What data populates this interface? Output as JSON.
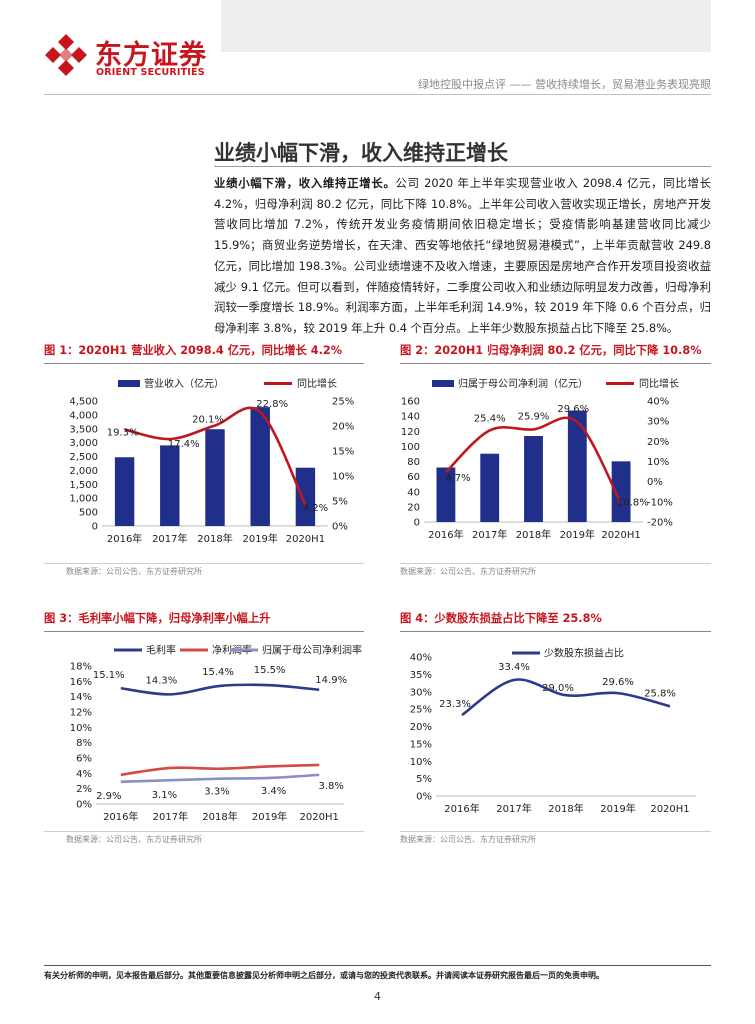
{
  "header": {
    "logo_cn": "东方证券",
    "logo_en": "ORIENT SECURITIES",
    "subtitle": "绿地控股中报点评 —— 营收持续增长，贸易港业务表现亮眼"
  },
  "section": {
    "title": "业绩小幅下滑，收入维持正增长",
    "lead": "业绩小幅下滑，收入维持正增长。",
    "body": "公司 2020 年上半年实现营业收入 2098.4 亿元，同比增长 4.2%，归母净利润 80.2 亿元，同比下降 10.8%。上半年公司收入营收实现正增长，房地产开发营收同比增加 7.2%，传统开发业务疫情期间依旧稳定增长；受疫情影响基建营收同比减少 15.9%；商贸业务逆势增长，在天津、西安等地依托“绿地贸易港模式”，上半年贡献营收 249.8 亿元，同比增加 198.3%。公司业绩增速不及收入增速，主要原因是房地产合作开发项目投资收益减少 9.1 亿元。但可以看到，伴随疫情转好，二季度公司收入和业绩边际明显发力改善，归母净利润较一季度增长 18.9%。利润率方面，上半年毛利润 14.9%，较 2019 年下降 0.6 个百分点，归母净利率 3.8%，较 2019 年上升 0.4 个百分点。上半年少数股东损益占比下降至 25.8%。"
  },
  "colors": {
    "brand_red": "#c8151d",
    "bar_navy": "#1f2f8a",
    "line_red": "#c0161f",
    "margin_navy": "#2b3a8c",
    "margin_red": "#d14a46",
    "margin_purple": "#8a8ec6"
  },
  "figures": [
    {
      "label": "图 1：",
      "title": "2020H1 营业收入 2098.4 亿元，同比增长 4.2%",
      "source": "数据来源：公司公告、东方证券研究所"
    },
    {
      "label": "图 2：",
      "title": "2020H1 归母净利润 80.2 亿元，同比下降 10.8%",
      "source": "数据来源：公司公告、东方证券研究所"
    },
    {
      "label": "图 3：",
      "title": "毛利率小幅下降，归母净利率小幅上升",
      "source": "数据来源：公司公告、东方证券研究所"
    },
    {
      "label": "图 4：",
      "title": "少数股东损益占比下降至 25.8%",
      "source": "数据来源：公司公告、东方证券研究所"
    }
  ],
  "chart_data": [
    {
      "type": "bar+line",
      "categories": [
        "2016年",
        "2017年",
        "2018年",
        "2019年",
        "2020H1"
      ],
      "series": [
        {
          "name": "营业收入（亿元）",
          "kind": "bar",
          "axis": "left",
          "values": [
            2475,
            2902,
            3484,
            4280,
            2098
          ]
        },
        {
          "name": "同比增长",
          "kind": "line",
          "axis": "right",
          "values": [
            19.3,
            17.4,
            20.1,
            22.8,
            4.2
          ]
        }
      ],
      "data_labels": [
        "19.3%",
        "17.4%",
        "20.1%",
        "22.8%",
        "4.2%"
      ],
      "left_ticks": [
        "4,500",
        "4,000",
        "3,500",
        "3,000",
        "2,500",
        "2,000",
        "1,500",
        "1,000",
        "500",
        "0"
      ],
      "right_ticks": [
        "25%",
        "20%",
        "15%",
        "10%",
        "5%",
        "0%"
      ],
      "ylim_left": [
        0,
        4500
      ],
      "ylim_right": [
        0,
        25
      ]
    },
    {
      "type": "bar+line",
      "categories": [
        "2016年",
        "2017年",
        "2018年",
        "2019年",
        "2020H1"
      ],
      "series": [
        {
          "name": "归属于母公司净利润（亿元）",
          "kind": "bar",
          "axis": "left",
          "values": [
            72.1,
            90.3,
            113.7,
            147.4,
            80.2
          ]
        },
        {
          "name": "同比增长",
          "kind": "line",
          "axis": "right",
          "values": [
            4.7,
            25.4,
            25.9,
            29.6,
            -10.8
          ]
        }
      ],
      "data_labels": [
        "4.7%",
        "25.4%",
        "25.9%",
        "29.6%",
        "-10.8%"
      ],
      "left_ticks": [
        "160",
        "140",
        "120",
        "100",
        "80",
        "60",
        "40",
        "20",
        "0"
      ],
      "right_ticks": [
        "40%",
        "30%",
        "20%",
        "10%",
        "0%",
        "-10%",
        "-20%"
      ],
      "ylim_left": [
        0,
        160
      ],
      "ylim_right": [
        -20,
        40
      ]
    },
    {
      "type": "line",
      "categories": [
        "2016年",
        "2017年",
        "2018年",
        "2019年",
        "2020H1"
      ],
      "series": [
        {
          "name": "毛利率",
          "values": [
            15.1,
            14.3,
            15.4,
            15.5,
            14.9
          ],
          "labels": [
            "15.1%",
            "14.3%",
            "15.4%",
            "15.5%",
            "14.9%"
          ]
        },
        {
          "name": "净利润率",
          "values": [
            3.8,
            4.7,
            4.6,
            4.9,
            5.1
          ],
          "labels": []
        },
        {
          "name": "归属于母公司净利润率",
          "values": [
            2.9,
            3.1,
            3.3,
            3.4,
            3.8
          ],
          "labels": [
            "2.9%",
            "3.1%",
            "3.3%",
            "3.4%",
            "3.8%"
          ]
        }
      ],
      "left_ticks": [
        "18%",
        "16%",
        "14%",
        "12%",
        "10%",
        "8%",
        "6%",
        "4%",
        "2%",
        "0%"
      ],
      "ylim": [
        0,
        18
      ]
    },
    {
      "type": "line",
      "categories": [
        "2016年",
        "2017年",
        "2018年",
        "2019年",
        "2020H1"
      ],
      "series": [
        {
          "name": "少数股东损益占比",
          "values": [
            23.3,
            33.4,
            29.0,
            29.6,
            25.8
          ],
          "labels": [
            "23.3%",
            "33.4%",
            "29.0%",
            "29.6%",
            "25.8%"
          ]
        }
      ],
      "left_ticks": [
        "40%",
        "35%",
        "30%",
        "25%",
        "20%",
        "15%",
        "10%",
        "5%",
        "0%"
      ],
      "ylim": [
        0,
        40
      ]
    }
  ],
  "footer": {
    "disclaimer": "有关分析师的申明，见本报告最后部分。其他重要信息披露见分析师申明之后部分，或请与您的投资代表联系。并请阅读本证券研究报告最后一页的免责申明。",
    "page": "4"
  }
}
